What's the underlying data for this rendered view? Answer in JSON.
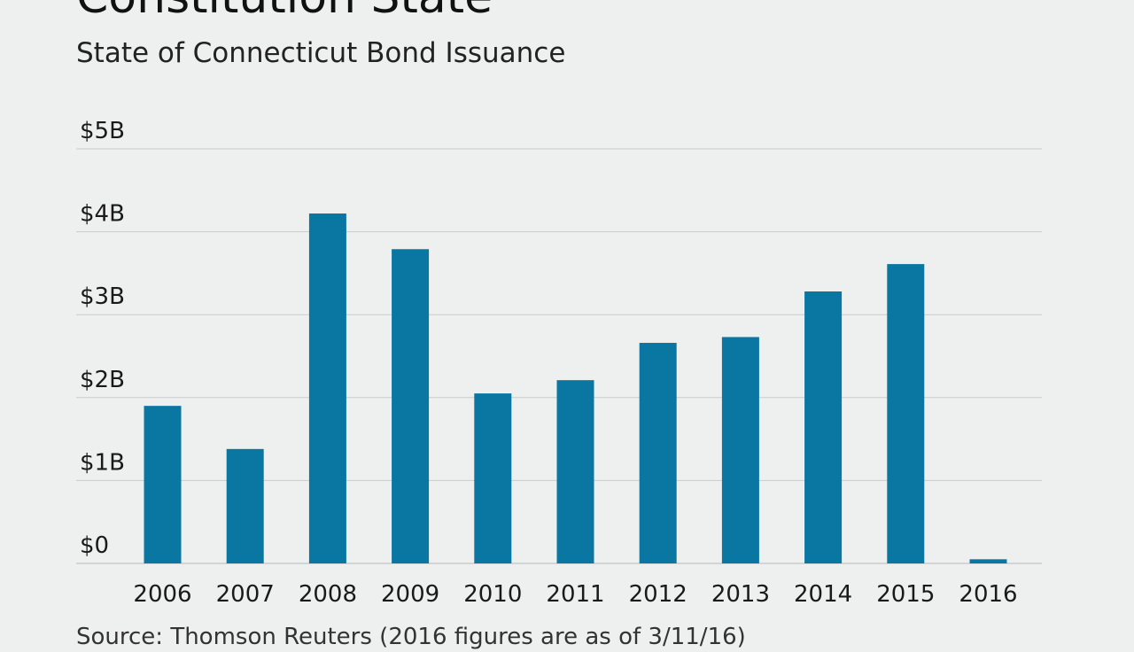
{
  "header": {
    "title": "Constitution State",
    "subtitle": "State of Connecticut Bond Issuance"
  },
  "footer": {
    "source": "Source: Thomson Reuters (2016 figures are as of 3/11/16)"
  },
  "colors": {
    "bar": "#0a77a3",
    "grid": "#c9cbcc",
    "background": "#eef0f0"
  },
  "chart_data": {
    "type": "bar",
    "title": "State of Connecticut Bond Issuance",
    "xlabel": "",
    "ylabel": "",
    "categories": [
      "2006",
      "2007",
      "2008",
      "2009",
      "2010",
      "2011",
      "2012",
      "2013",
      "2014",
      "2015",
      "2016"
    ],
    "values": [
      1.9,
      1.38,
      4.22,
      3.79,
      2.05,
      2.21,
      2.66,
      2.73,
      3.28,
      3.61,
      0.05
    ],
    "unit": "billion USD",
    "ylim": [
      0,
      5
    ],
    "yticks": [
      {
        "value": 0,
        "label": "$0"
      },
      {
        "value": 1,
        "label": "$1B"
      },
      {
        "value": 2,
        "label": "$2B"
      },
      {
        "value": 3,
        "label": "$3B"
      },
      {
        "value": 4,
        "label": "$4B"
      },
      {
        "value": 5,
        "label": "$5B"
      }
    ],
    "grid": true,
    "legend": "none"
  }
}
